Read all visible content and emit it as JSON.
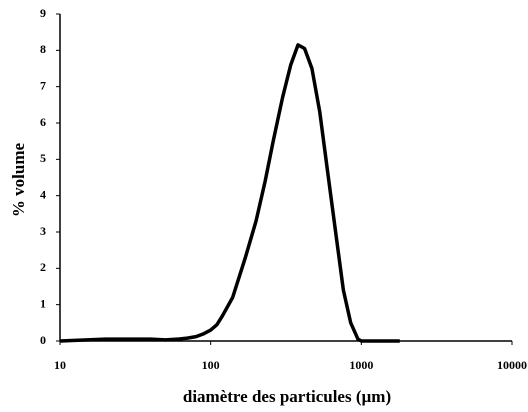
{
  "chart_data": {
    "type": "line",
    "xlabel": "diamètre des particules (µm)",
    "ylabel": "% volume",
    "xscale": "log",
    "color": "#000000",
    "x": [
      10,
      20,
      30,
      40,
      50,
      60,
      70,
      80,
      90,
      100,
      110,
      120,
      140,
      170,
      200,
      230,
      260,
      300,
      340,
      380,
      420,
      470,
      530,
      600,
      680,
      760,
      850,
      950,
      1000,
      1200,
      1500,
      1800
    ],
    "values": [
      0,
      0.05,
      0.05,
      0.05,
      0.03,
      0.05,
      0.08,
      0.12,
      0.2,
      0.3,
      0.45,
      0.7,
      1.2,
      2.3,
      3.3,
      4.4,
      5.5,
      6.7,
      7.6,
      8.15,
      8.05,
      7.5,
      6.3,
      4.6,
      2.9,
      1.4,
      0.5,
      0.05,
      0,
      0,
      0,
      0
    ],
    "xlim": [
      10,
      10000
    ],
    "xticks": [
      10,
      100,
      1000,
      10000
    ],
    "ylim": [
      0,
      9
    ],
    "yticks": [
      0,
      1,
      2,
      3,
      4,
      5,
      6,
      7,
      8,
      9
    ]
  }
}
